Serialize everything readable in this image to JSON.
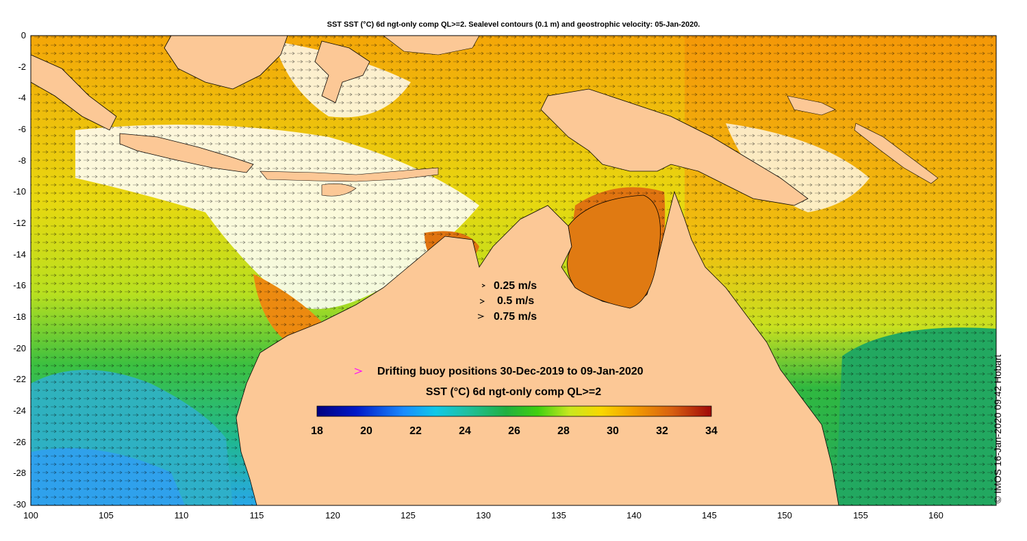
{
  "title": "SST SST (°C) 6d ngt-only comp QL>=2. Sealevel contours (0.1 m) and geostrophic velocity: 05-Jan-2020.",
  "credit": "© IMOS 16-Jan-2020 09:42 Hobart",
  "axes": {
    "lon_ticks": [
      "100",
      "105",
      "110",
      "115",
      "120",
      "125",
      "130",
      "135",
      "140",
      "145",
      "150",
      "155",
      "160"
    ],
    "lat_ticks": [
      "0",
      "-2",
      "-4",
      "-6",
      "-8",
      "-10",
      "-12",
      "-14",
      "-16",
      "-18",
      "-20",
      "-22",
      "-24",
      "-26",
      "-28",
      "-30"
    ],
    "lon_range": [
      100,
      164
    ],
    "lat_range": [
      -30,
      0
    ]
  },
  "velocity_legend": {
    "items": [
      "0.25 m/s",
      "0.5 m/s",
      "0.75 m/s"
    ]
  },
  "buoy_legend": {
    "label": "Drifting buoy positions 30-Dec-2019 to 09-Jan-2020",
    "marker_color": "#ff00ff"
  },
  "colorbar": {
    "title": "SST (°C) 6d ngt-only comp QL>=2",
    "ticks": [
      "18",
      "20",
      "22",
      "24",
      "26",
      "28",
      "30",
      "32",
      "34"
    ],
    "min": 18,
    "max": 34
  },
  "colors": {
    "land": "#fcc896",
    "water_warm": "#f29b08",
    "water_cool": "#1fb45a"
  }
}
